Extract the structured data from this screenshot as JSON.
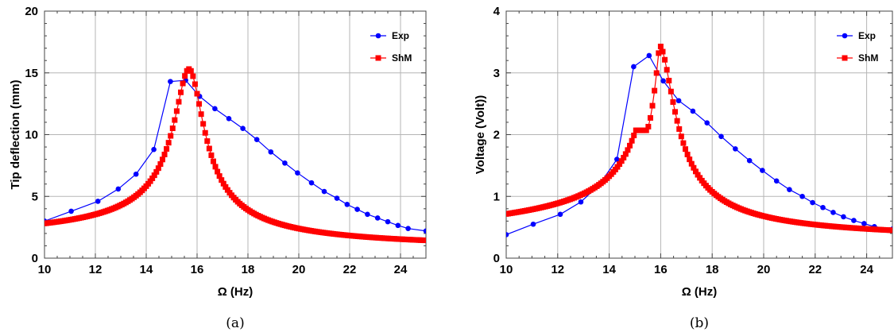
{
  "chart_data": [
    {
      "type": "line",
      "caption": "(a)",
      "xlabel": "Ω (Hz)",
      "ylabel": "Tip deflection (mm)",
      "xlim": [
        10,
        25
      ],
      "ylim": [
        0,
        20
      ],
      "xticks": [
        10,
        12,
        14,
        16,
        18,
        20,
        22,
        24
      ],
      "yticks": [
        0,
        5,
        10,
        15,
        20
      ],
      "grid": true,
      "legend_position": "top-right",
      "series": [
        {
          "name": "Exp",
          "color": "#0000ff",
          "marker": "circle",
          "x": [
            10.0,
            11.05,
            12.1,
            12.9,
            13.6,
            14.3,
            14.95,
            15.55,
            16.1,
            16.7,
            17.25,
            17.8,
            18.35,
            18.9,
            19.45,
            19.95,
            20.5,
            21.0,
            21.5,
            21.9,
            22.3,
            22.7,
            23.1,
            23.5,
            23.9,
            24.3,
            25.0
          ],
          "y": [
            3.0,
            3.8,
            4.6,
            5.6,
            6.8,
            8.8,
            14.3,
            14.4,
            13.1,
            12.1,
            11.3,
            10.5,
            9.6,
            8.6,
            7.7,
            6.9,
            6.1,
            5.4,
            4.85,
            4.35,
            3.95,
            3.55,
            3.25,
            2.95,
            2.65,
            2.4,
            2.2
          ]
        },
        {
          "name": "ShM",
          "color": "#ff0000",
          "marker": "square",
          "x_range": [
            10,
            25
          ],
          "x_step": 0.08,
          "model": {
            "f0": 15.7,
            "f1": 10,
            "f2": 18.9,
            "y0": 1.15,
            "y1": 0.78,
            "peak": 15.3
          }
        }
      ]
    },
    {
      "type": "line",
      "caption": "(b)",
      "xlabel": "Ω (Hz)",
      "ylabel": "Voltage (Volt))",
      "xlim": [
        10,
        25
      ],
      "ylim": [
        0,
        4
      ],
      "xticks": [
        10,
        12,
        14,
        16,
        18,
        20,
        22,
        24
      ],
      "yticks": [
        0,
        1,
        2,
        3,
        4
      ],
      "grid": true,
      "legend_position": "top-right",
      "series": [
        {
          "name": "Exp",
          "color": "#0000ff",
          "marker": "circle",
          "x": [
            10.0,
            11.05,
            12.1,
            12.9,
            13.6,
            14.3,
            14.95,
            15.55,
            16.1,
            16.7,
            17.25,
            17.8,
            18.35,
            18.9,
            19.45,
            19.95,
            20.5,
            21.0,
            21.5,
            21.9,
            22.3,
            22.7,
            23.1,
            23.5,
            23.9,
            24.3,
            25.0
          ],
          "y": [
            0.38,
            0.55,
            0.71,
            0.91,
            1.18,
            1.6,
            3.1,
            3.28,
            2.87,
            2.55,
            2.38,
            2.19,
            1.97,
            1.77,
            1.58,
            1.42,
            1.25,
            1.11,
            1.0,
            0.9,
            0.82,
            0.74,
            0.67,
            0.61,
            0.56,
            0.51,
            0.47
          ]
        },
        {
          "name": "ShM",
          "color": "#ff0000",
          "marker": "square",
          "x_range": [
            10,
            25
          ],
          "x_step": 0.08,
          "model": {
            "f0": 15.95,
            "f1": 10,
            "f2": 18.9,
            "y0": 0.36,
            "y1": 0.3,
            "peak": 3.45,
            "plateau_x": [
              15.0,
              15.45
            ],
            "plateau_y": 2.07
          }
        }
      ]
    }
  ]
}
